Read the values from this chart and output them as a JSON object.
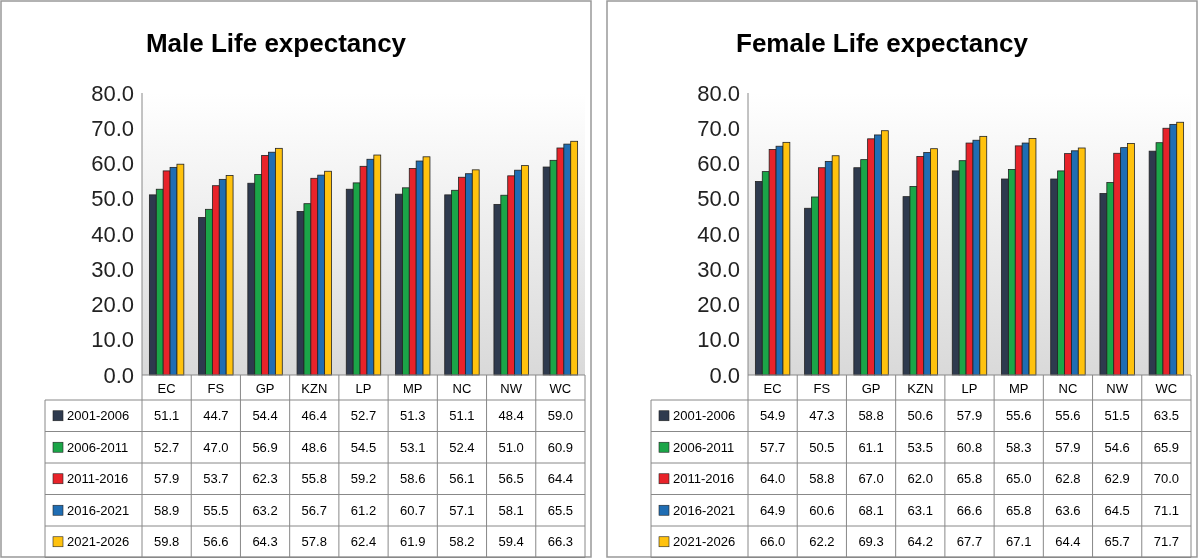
{
  "chart_data": [
    {
      "type": "bar",
      "title": "Male Life expectancy",
      "categories": [
        "EC",
        "FS",
        "GP",
        "KZN",
        "LP",
        "MP",
        "NC",
        "NW",
        "WC"
      ],
      "series": [
        {
          "name": "2001-2006",
          "color": "#2e3a4e",
          "values": [
            51.1,
            44.7,
            54.4,
            46.4,
            52.7,
            51.3,
            51.1,
            48.4,
            59.0
          ],
          "value_labels": [
            "51.1",
            "44.7",
            "54.4",
            "46.4",
            "52.7",
            "51.3",
            "51.1",
            "48.4",
            "59.0"
          ]
        },
        {
          "name": "2006-2011",
          "color": "#1ba548",
          "values": [
            52.7,
            47.0,
            56.9,
            48.6,
            54.5,
            53.1,
            52.4,
            51.0,
            60.9
          ],
          "value_labels": [
            "52.7",
            "47.0",
            "56.9",
            "48.6",
            "54.5",
            "53.1",
            "52.4",
            "51.0",
            "60.9"
          ]
        },
        {
          "name": "2011-2016",
          "color": "#e8232a",
          "values": [
            57.9,
            53.7,
            62.3,
            55.8,
            59.2,
            58.6,
            56.1,
            56.5,
            64.4
          ],
          "value_labels": [
            "57.9",
            "53.7",
            "62.3",
            "55.8",
            "59.2",
            "58.6",
            "56.1",
            "56.5",
            "64.4"
          ]
        },
        {
          "name": "2016-2021",
          "color": "#1f6db3",
          "values": [
            58.9,
            55.5,
            63.2,
            56.7,
            61.2,
            60.7,
            57.1,
            58.1,
            65.5
          ],
          "value_labels": [
            "58.9",
            "55.5",
            "63.2",
            "56.7",
            "61.2",
            "60.7",
            "57.1",
            "58.1",
            "65.5"
          ]
        },
        {
          "name": "2021-2026",
          "color": "#ffc20e",
          "values": [
            59.8,
            56.6,
            64.3,
            57.8,
            62.4,
            61.9,
            58.2,
            59.4,
            66.3
          ],
          "value_labels": [
            "59.8",
            "56.6",
            "64.3",
            "57.8",
            "62.4",
            "61.9",
            "58.2",
            "59.4",
            "66.3"
          ]
        }
      ],
      "ylim": [
        0,
        80
      ],
      "yticks": [
        {
          "value": 0,
          "label": "0.0"
        },
        {
          "value": 10,
          "label": "10.0"
        },
        {
          "value": 20,
          "label": "20.0"
        },
        {
          "value": 30,
          "label": "30.0"
        },
        {
          "value": 40,
          "label": "40.0"
        },
        {
          "value": 50,
          "label": "50.0"
        },
        {
          "value": 60,
          "label": "60.0"
        },
        {
          "value": 70,
          "label": "70.0"
        },
        {
          "value": 80,
          "label": "80.0"
        }
      ],
      "legend": "bottom"
    },
    {
      "type": "bar",
      "title": "Female Life expectancy",
      "categories": [
        "EC",
        "FS",
        "GP",
        "KZN",
        "LP",
        "MP",
        "NC",
        "NW",
        "WC"
      ],
      "series": [
        {
          "name": "2001-2006",
          "color": "#2e3a4e",
          "values": [
            54.9,
            47.3,
            58.8,
            50.6,
            57.9,
            55.6,
            55.6,
            51.5,
            63.5
          ],
          "value_labels": [
            "54.9",
            "47.3",
            "58.8",
            "50.6",
            "57.9",
            "55.6",
            "55.6",
            "51.5",
            "63.5"
          ]
        },
        {
          "name": "2006-2011",
          "color": "#1ba548",
          "values": [
            57.7,
            50.5,
            61.1,
            53.5,
            60.8,
            58.3,
            57.9,
            54.6,
            65.9
          ],
          "value_labels": [
            "57.7",
            "50.5",
            "61.1",
            "53.5",
            "60.8",
            "58.3",
            "57.9",
            "54.6",
            "65.9"
          ]
        },
        {
          "name": "2011-2016",
          "color": "#e8232a",
          "values": [
            64.0,
            58.8,
            67.0,
            62.0,
            65.8,
            65.0,
            62.8,
            62.9,
            70.0
          ],
          "value_labels": [
            "64.0",
            "58.8",
            "67.0",
            "62.0",
            "65.8",
            "65.0",
            "62.8",
            "62.9",
            "70.0"
          ]
        },
        {
          "name": "2016-2021",
          "color": "#1f6db3",
          "values": [
            64.9,
            60.6,
            68.1,
            63.1,
            66.6,
            65.8,
            63.6,
            64.5,
            71.1
          ],
          "value_labels": [
            "64.9",
            "60.6",
            "68.1",
            "63.1",
            "66.6",
            "65.8",
            "63.6",
            "64.5",
            "71.1"
          ]
        },
        {
          "name": "2021-2026",
          "color": "#ffc20e",
          "values": [
            66.0,
            62.2,
            69.3,
            64.2,
            67.7,
            67.1,
            64.4,
            65.7,
            71.7
          ],
          "value_labels": [
            "66.0",
            "62.2",
            "69.3",
            "64.2",
            "67.7",
            "67.1",
            "64.4",
            "65.7",
            "71.7"
          ]
        }
      ],
      "ylim": [
        0,
        80
      ],
      "yticks": [
        {
          "value": 0,
          "label": "0.0"
        },
        {
          "value": 10,
          "label": "10.0"
        },
        {
          "value": 20,
          "label": "20.0"
        },
        {
          "value": 30,
          "label": "30.0"
        },
        {
          "value": 40,
          "label": "40.0"
        },
        {
          "value": 50,
          "label": "50.0"
        },
        {
          "value": 60,
          "label": "60.0"
        },
        {
          "value": 70,
          "label": "70.0"
        },
        {
          "value": 80,
          "label": "80.0"
        }
      ],
      "legend": "bottom"
    }
  ]
}
